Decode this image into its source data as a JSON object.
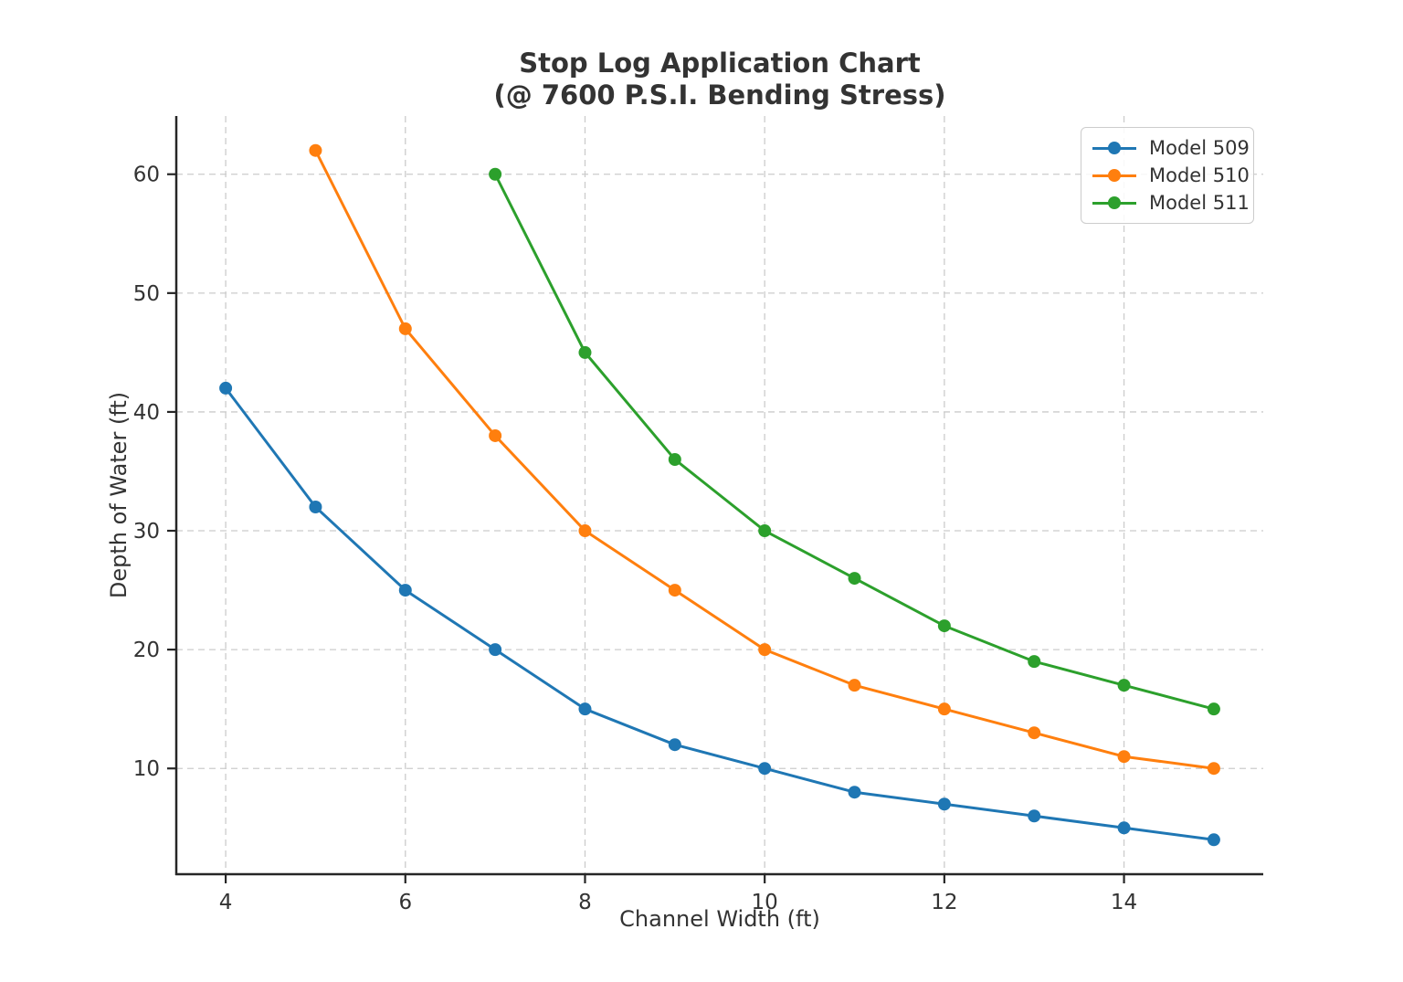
{
  "title_line1": "Stop Log Application Chart",
  "title_line2": "(@ 7600 P.S.I. Bending Stress)",
  "chart_data": {
    "type": "line",
    "title": "Stop Log Application Chart (@ 7600 P.S.I. Bending Stress)",
    "xlabel": "Channel Width (ft)",
    "ylabel": "Depth of Water (ft)",
    "xlim": [
      3.45,
      15.55
    ],
    "ylim": [
      1.1,
      64.9
    ],
    "xticks": [
      4,
      6,
      8,
      10,
      12,
      14
    ],
    "yticks": [
      10,
      20,
      30,
      40,
      50,
      60
    ],
    "grid": true,
    "grid_style": "dashed",
    "legend_position": "upper right",
    "marker": "circle",
    "series": [
      {
        "name": "Model 509",
        "color": "#1f77b4",
        "x": [
          4,
          5,
          6,
          7,
          8,
          9,
          10,
          11,
          12,
          13,
          14,
          15
        ],
        "y": [
          42,
          32,
          25,
          20,
          15,
          12,
          10,
          8,
          7,
          6,
          5,
          4
        ]
      },
      {
        "name": "Model 510",
        "color": "#ff7f0e",
        "x": [
          5,
          6,
          7,
          8,
          9,
          10,
          11,
          12,
          13,
          14,
          15
        ],
        "y": [
          62,
          47,
          38,
          30,
          25,
          20,
          17,
          15,
          13,
          11,
          10
        ]
      },
      {
        "name": "Model 511",
        "color": "#2ca02c",
        "x": [
          7,
          8,
          9,
          10,
          11,
          12,
          13,
          14,
          15
        ],
        "y": [
          60,
          45,
          36,
          30,
          26,
          22,
          19,
          17,
          15
        ]
      }
    ]
  }
}
